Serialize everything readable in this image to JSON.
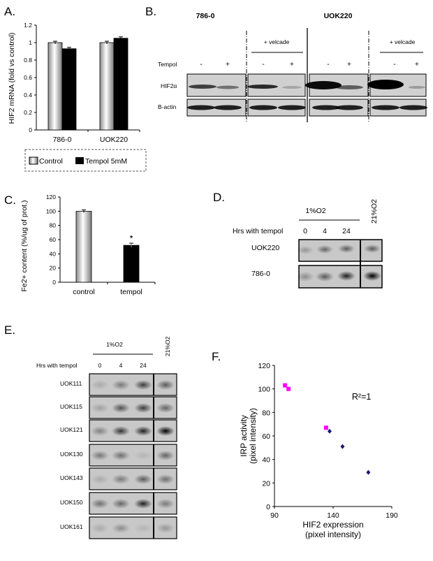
{
  "panels": {
    "a": "A.",
    "b": "B.",
    "c": "C.",
    "d": "D.",
    "e": "E.",
    "f": "F."
  },
  "colors": {
    "black": "#000000",
    "magenta": "#ff00ff",
    "navy": "#1a1a6e",
    "gray_bar": "#d9d9d9",
    "blot_bg": "#c8c8c8"
  },
  "panel_a": {
    "ylabel": "HIF2 mRNA (fold vs control)",
    "legend": {
      "control": "Control",
      "tempol": "Tempol 5mM"
    }
  },
  "panel_b": {
    "cell_lines": [
      "786-0",
      "UOK220"
    ],
    "velcade": [
      "+ velcade",
      "+ velcade"
    ],
    "tempol_label": "Tempol",
    "treatments": [
      "-",
      "+",
      "-",
      "+",
      "-",
      "+",
      "-",
      "+"
    ],
    "rows": [
      "HIF2α",
      "B-actin"
    ]
  },
  "panel_c": {
    "ylabel": "Fe2+ content (%/ug of prot.)",
    "asterisk": "*"
  },
  "panel_d": {
    "condition": "1%O2",
    "condition_alt": "21%O2",
    "hrs_label": "Hrs with tempol",
    "times": [
      "0",
      "4",
      "24"
    ],
    "rows": [
      "UOK220",
      "786-0"
    ]
  },
  "panel_e": {
    "condition": "1%O2",
    "condition_alt": "21%O2",
    "hrs_label": "Hrs with tempol",
    "times": [
      "0",
      "4",
      "24"
    ],
    "rows": [
      "UOK111",
      "UOK115",
      "UOK121",
      "UOK130",
      "UOK143",
      "UOK150",
      "UOK161"
    ]
  },
  "chart_data": [
    {
      "type": "bar",
      "panel": "A",
      "categories": [
        "786-0",
        "UOK220"
      ],
      "series": [
        {
          "name": "Control",
          "values": [
            1.0,
            1.0
          ]
        },
        {
          "name": "Tempol 5mM",
          "values": [
            0.93,
            1.05
          ]
        }
      ],
      "ylabel": "HIF2 mRNA (fold vs control)",
      "ylim": [
        0,
        1.2
      ],
      "yticks": [
        "0",
        "0.2",
        "0.4",
        "0.6",
        "0.8",
        "1",
        "1.2"
      ],
      "legend_position": "bottom"
    },
    {
      "type": "bar",
      "panel": "C",
      "categories": [
        "control",
        "tempol"
      ],
      "values": [
        100,
        52
      ],
      "errors": [
        2,
        3
      ],
      "ylabel": "Fe2+ content (%/ug of prot.)",
      "ylim": [
        0,
        120
      ],
      "yticks": [
        "0",
        "20",
        "40",
        "60",
        "80",
        "100",
        "120"
      ]
    },
    {
      "type": "scatter",
      "panel": "F",
      "xlabel": "HIF2 expression",
      "xlabel2": "(pixel intensity)",
      "ylabel": "IRP activity",
      "ylabel2": "(pixel intensity)",
      "xlim": [
        90,
        190
      ],
      "ylim": [
        0,
        120
      ],
      "xticks": [
        "90",
        "140",
        "190"
      ],
      "yticks": [
        "0",
        "20",
        "40",
        "60",
        "80",
        "100",
        "120"
      ],
      "annotation": "R²=1",
      "series": [
        {
          "color": "magenta",
          "marker": "square",
          "x": [
            99,
            102,
            134
          ],
          "y": [
            103,
            100,
            67
          ]
        },
        {
          "color": "navy",
          "marker": "diamond",
          "x": [
            137,
            148,
            170
          ],
          "y": [
            64,
            51,
            29
          ]
        }
      ]
    }
  ]
}
